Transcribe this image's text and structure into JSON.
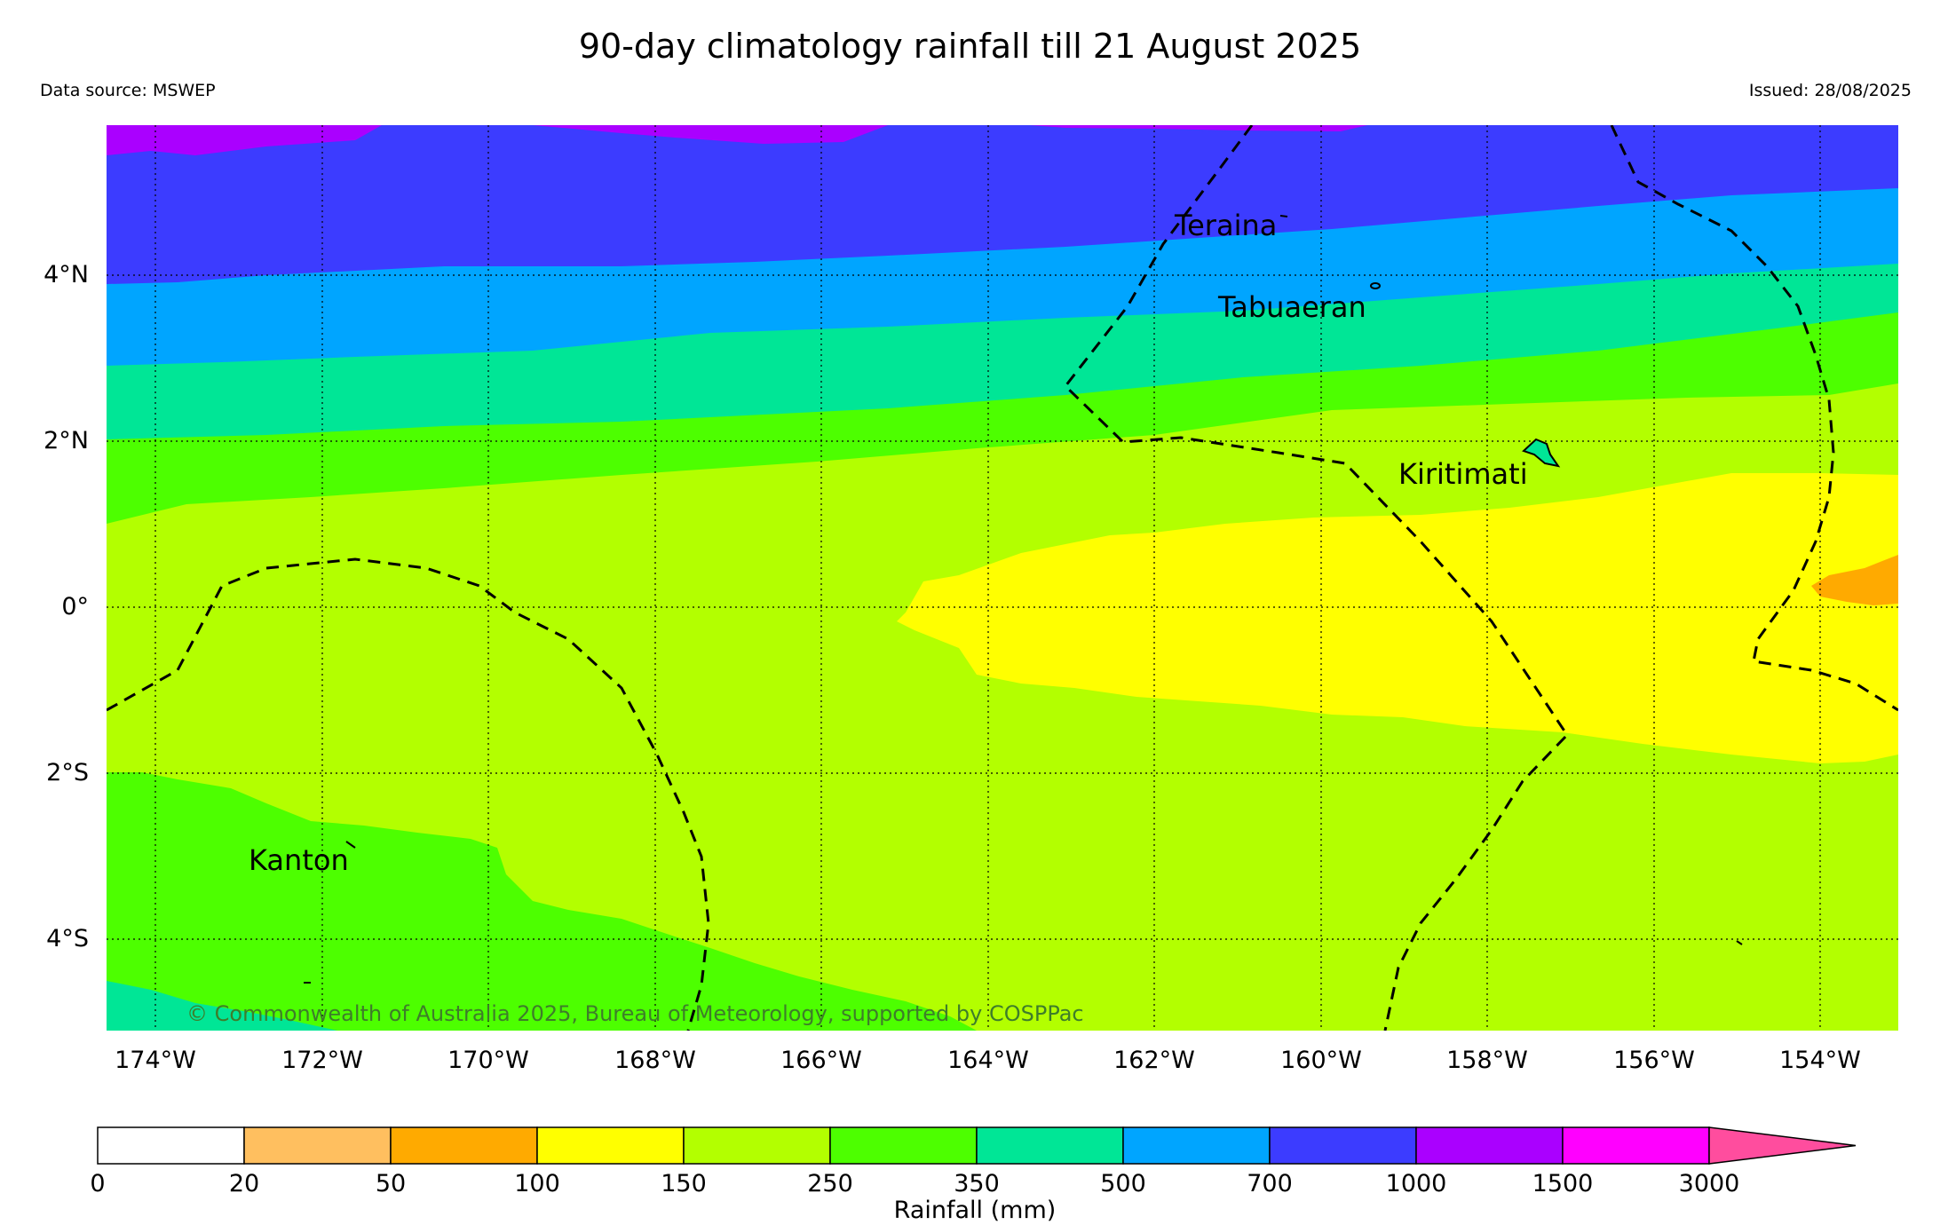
{
  "title": "90-day climatology rainfall till 21 August 2025",
  "data_source": "Data source: MSWEP",
  "issued": "Issued: 28/08/2025",
  "copyright": "© Commonwealth of Australia 2025, Bureau of Meteorology, supported by COSPPac",
  "longitude_labels": [
    "174°W",
    "172°W",
    "170°W",
    "168°W",
    "166°W",
    "164°W",
    "162°W",
    "160°W",
    "158°W",
    "156°W",
    "154°W"
  ],
  "latitude_labels": [
    "4°N",
    "2°N",
    "0°",
    "2°S",
    "4°S"
  ],
  "places": [
    "Teraina",
    "Tabuaeran",
    "Kiritimati",
    "Kanton"
  ],
  "colorbar": {
    "title": "Rainfall (mm)",
    "labels": [
      "0",
      "20",
      "50",
      "100",
      "150",
      "250",
      "350",
      "500",
      "700",
      "1000",
      "1500",
      "3000"
    ],
    "colors": [
      "#ffffff",
      "#ffbf5f",
      "#ffaa00",
      "#ffff00",
      "#b3ff00",
      "#4dff00",
      "#00e696",
      "#00a5ff",
      "#3c3cff",
      "#aa00ff",
      "#ff00ff",
      "#ff4d9e"
    ]
  },
  "legend_colors": {
    "lt_150": "#ffff00",
    "150_250": "#b3ff00",
    "250_350": "#4dff00",
    "350_500": "#00e696",
    "500_700": "#00a5ff",
    "700_1000": "#3c3cff",
    "1000_1500": "#aa00ff",
    "50_100": "#ffaa00"
  }
}
